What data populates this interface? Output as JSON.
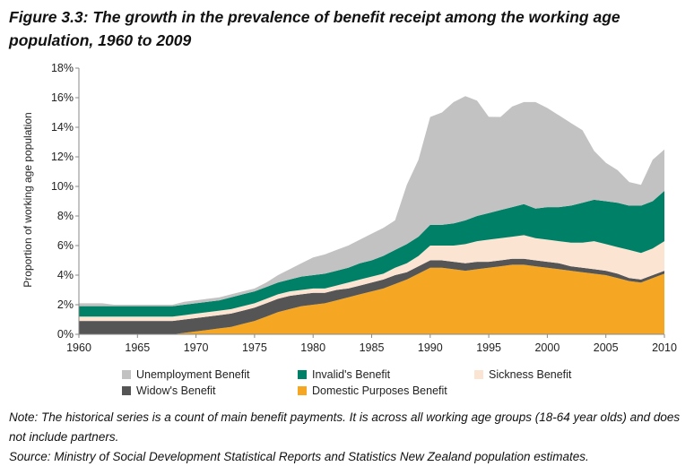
{
  "title": "Figure 3.3: The growth in the prevalence of benefit receipt among the working age population, 1960 to 2009",
  "note": "Note: The historical series is a count of main benefit payments. It is across all working age groups (18-64 year olds) and does not include partners.",
  "source": "Source: Ministry of Social Development Statistical Reports and Statistics New Zealand population estimates.",
  "chart_data": {
    "type": "area",
    "stacked": true,
    "ylabel": "Proportion of working age population",
    "xlabel": "",
    "ylim": [
      0,
      18
    ],
    "y_ticks": [
      "0%",
      "2%",
      "4%",
      "6%",
      "8%",
      "10%",
      "12%",
      "14%",
      "16%",
      "18%"
    ],
    "x_ticks": [
      "1960",
      "1965",
      "1970",
      "1975",
      "1980",
      "1985",
      "1990",
      "1995",
      "2000",
      "2005",
      "2010"
    ],
    "xlim": [
      1960,
      2010
    ],
    "x": [
      1960,
      1961,
      1962,
      1963,
      1964,
      1965,
      1966,
      1967,
      1968,
      1969,
      1970,
      1971,
      1972,
      1973,
      1974,
      1975,
      1976,
      1977,
      1978,
      1979,
      1980,
      1981,
      1982,
      1983,
      1984,
      1985,
      1986,
      1987,
      1988,
      1989,
      1990,
      1991,
      1992,
      1993,
      1994,
      1995,
      1996,
      1997,
      1998,
      1999,
      2000,
      2001,
      2002,
      2003,
      2004,
      2005,
      2006,
      2007,
      2008,
      2009,
      2010
    ],
    "series": [
      {
        "name": "Domestic Purposes Benefit",
        "color": "#F5A623",
        "values": [
          0,
          0,
          0,
          0,
          0,
          0,
          0,
          0,
          0,
          0.1,
          0.2,
          0.3,
          0.4,
          0.5,
          0.7,
          0.9,
          1.2,
          1.5,
          1.7,
          1.9,
          2.0,
          2.1,
          2.3,
          2.5,
          2.7,
          2.9,
          3.1,
          3.4,
          3.7,
          4.1,
          4.5,
          4.5,
          4.4,
          4.3,
          4.4,
          4.5,
          4.6,
          4.7,
          4.7,
          4.6,
          4.5,
          4.4,
          4.3,
          4.2,
          4.1,
          4.0,
          3.8,
          3.6,
          3.5,
          3.8,
          4.1
        ]
      },
      {
        "name": "Widow's Benefit",
        "color": "#555555",
        "values": [
          0.9,
          0.9,
          0.9,
          0.9,
          0.9,
          0.9,
          0.9,
          0.9,
          0.9,
          0.9,
          0.9,
          0.9,
          0.9,
          0.9,
          0.9,
          0.9,
          0.9,
          0.9,
          0.9,
          0.8,
          0.8,
          0.7,
          0.7,
          0.6,
          0.6,
          0.6,
          0.6,
          0.6,
          0.5,
          0.5,
          0.5,
          0.5,
          0.5,
          0.5,
          0.5,
          0.4,
          0.4,
          0.4,
          0.4,
          0.4,
          0.4,
          0.4,
          0.3,
          0.3,
          0.3,
          0.3,
          0.3,
          0.2,
          0.2,
          0.2,
          0.2
        ]
      },
      {
        "name": "Sickness Benefit",
        "color": "#FCE4D2",
        "values": [
          0.3,
          0.3,
          0.3,
          0.3,
          0.3,
          0.3,
          0.3,
          0.3,
          0.3,
          0.3,
          0.3,
          0.3,
          0.3,
          0.3,
          0.3,
          0.3,
          0.3,
          0.3,
          0.3,
          0.3,
          0.3,
          0.3,
          0.3,
          0.4,
          0.4,
          0.4,
          0.4,
          0.5,
          0.6,
          0.7,
          1.0,
          1.0,
          1.1,
          1.3,
          1.4,
          1.5,
          1.5,
          1.5,
          1.6,
          1.5,
          1.5,
          1.5,
          1.6,
          1.7,
          1.9,
          1.8,
          1.8,
          1.9,
          1.8,
          1.8,
          2.0
        ]
      },
      {
        "name": "Invalid's Benefit",
        "color": "#008066",
        "values": [
          0.7,
          0.7,
          0.7,
          0.7,
          0.7,
          0.7,
          0.7,
          0.7,
          0.7,
          0.7,
          0.7,
          0.7,
          0.7,
          0.8,
          0.8,
          0.8,
          0.8,
          0.8,
          0.8,
          0.9,
          0.9,
          1.0,
          1.0,
          1.0,
          1.1,
          1.1,
          1.2,
          1.2,
          1.3,
          1.3,
          1.4,
          1.4,
          1.5,
          1.6,
          1.7,
          1.8,
          1.9,
          2.0,
          2.1,
          2.0,
          2.2,
          2.3,
          2.5,
          2.7,
          2.8,
          2.9,
          3.0,
          3.0,
          3.2,
          3.2,
          3.4
        ]
      },
      {
        "name": "Unemployment Benefit",
        "color": "#C2C2C2",
        "values": [
          0.2,
          0.2,
          0.2,
          0.1,
          0.1,
          0.1,
          0.1,
          0.1,
          0.1,
          0.2,
          0.2,
          0.2,
          0.2,
          0.2,
          0.2,
          0.2,
          0.3,
          0.5,
          0.7,
          0.9,
          1.2,
          1.3,
          1.4,
          1.5,
          1.6,
          1.8,
          1.9,
          2.0,
          4.0,
          5.2,
          7.3,
          7.6,
          8.2,
          8.4,
          7.8,
          6.5,
          6.3,
          6.8,
          6.9,
          7.2,
          6.7,
          6.2,
          5.6,
          4.9,
          3.3,
          2.6,
          2.2,
          1.6,
          1.4,
          2.8,
          2.8
        ]
      }
    ],
    "legend": [
      "Unemployment Benefit",
      "Invalid's Benefit",
      "Sickness Benefit",
      "Widow's Benefit",
      "Domestic Purposes Benefit"
    ]
  }
}
